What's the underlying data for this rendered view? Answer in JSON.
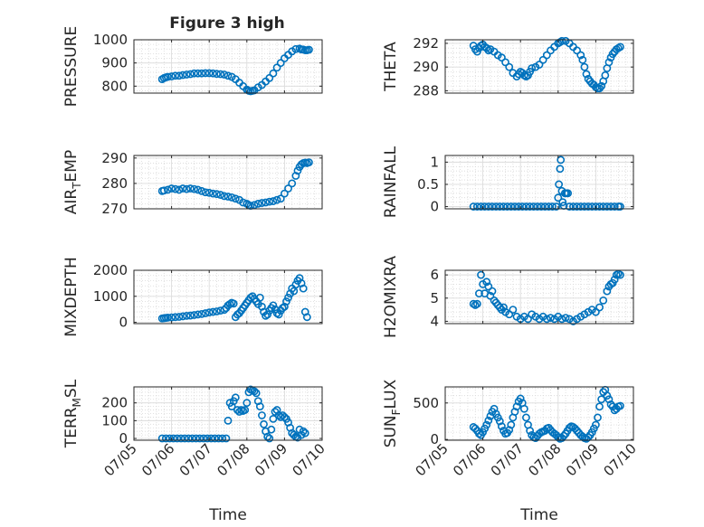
{
  "figure": {
    "title": "Figure 3 high",
    "background": "#ffffff",
    "marker_color": "#0072BD"
  },
  "chart_data": [
    {
      "type": "scatter",
      "title": "Figure 3 high",
      "xlabel": "",
      "ylabel": "PRESSURE",
      "ylim": [
        770,
        1000
      ],
      "yticks": [
        800,
        900,
        1000
      ],
      "xlim": [
        0,
        5
      ],
      "grid": true,
      "minor_grid": true,
      "xticklabels": [
        "07/05",
        "07/06",
        "07/07",
        "07/08",
        "07/09",
        "07/10"
      ],
      "x": [
        0.75,
        0.8,
        0.85,
        0.9,
        1.0,
        1.1,
        1.2,
        1.3,
        1.4,
        1.5,
        1.6,
        1.7,
        1.8,
        1.9,
        2.0,
        2.1,
        2.2,
        2.3,
        2.4,
        2.5,
        2.6,
        2.7,
        2.8,
        2.9,
        3.0,
        3.05,
        3.1,
        3.15,
        3.2,
        3.3,
        3.4,
        3.5,
        3.6,
        3.7,
        3.8,
        3.9,
        4.0,
        4.1,
        4.2,
        4.3,
        4.4,
        4.45,
        4.5,
        4.55,
        4.6,
        4.65
      ],
      "y": [
        830,
        835,
        838,
        840,
        842,
        845,
        845,
        848,
        850,
        852,
        855,
        855,
        855,
        856,
        856,
        855,
        853,
        852,
        850,
        845,
        840,
        830,
        815,
        800,
        785,
        780,
        778,
        780,
        782,
        795,
        805,
        820,
        835,
        855,
        880,
        900,
        920,
        935,
        950,
        960,
        962,
        958,
        958,
        955,
        955,
        957
      ]
    },
    {
      "type": "scatter",
      "xlabel": "",
      "ylabel": "THETA",
      "ylim": [
        287.8,
        292.3
      ],
      "yticks": [
        288,
        290,
        292
      ],
      "xlim": [
        0,
        5
      ],
      "grid": true,
      "minor_grid": true,
      "xticklabels": [
        "07/05",
        "07/06",
        "07/07",
        "07/08",
        "07/09",
        "07/10"
      ],
      "x": [
        0.75,
        0.8,
        0.85,
        0.9,
        0.95,
        1.0,
        1.05,
        1.1,
        1.15,
        1.2,
        1.3,
        1.4,
        1.5,
        1.6,
        1.7,
        1.8,
        1.9,
        1.95,
        2.0,
        2.05,
        2.1,
        2.15,
        2.2,
        2.25,
        2.3,
        2.4,
        2.5,
        2.6,
        2.7,
        2.8,
        2.9,
        3.0,
        3.05,
        3.1,
        3.2,
        3.3,
        3.4,
        3.5,
        3.6,
        3.65,
        3.7,
        3.75,
        3.8,
        3.85,
        3.9,
        3.95,
        4.0,
        4.05,
        4.1,
        4.15,
        4.2,
        4.25,
        4.3,
        4.35,
        4.4,
        4.45,
        4.5,
        4.55,
        4.6,
        4.65
      ],
      "y": [
        291.8,
        291.5,
        291.3,
        291.6,
        291.8,
        291.9,
        291.7,
        291.6,
        291.4,
        291.5,
        291.3,
        291.0,
        290.8,
        290.4,
        290.0,
        289.5,
        289.2,
        289.4,
        289.6,
        289.5,
        289.3,
        289.2,
        289.3,
        289.6,
        289.9,
        290.0,
        290.2,
        290.6,
        291.0,
        291.4,
        291.7,
        292.0,
        292.1,
        292.2,
        292.2,
        292.0,
        291.7,
        291.4,
        291.0,
        290.6,
        290.0,
        289.4,
        289.0,
        288.8,
        288.6,
        288.5,
        288.3,
        288.2,
        288.2,
        288.4,
        288.8,
        289.3,
        289.9,
        290.4,
        290.8,
        291.1,
        291.3,
        291.5,
        291.6,
        291.7
      ]
    },
    {
      "type": "scatter",
      "xlabel": "",
      "ylabel": "AIR_TEMP",
      "ylim": [
        270,
        291
      ],
      "yticks": [
        270,
        280,
        290
      ],
      "xlim": [
        0,
        5
      ],
      "grid": true,
      "minor_grid": true,
      "xticklabels": [
        "07/05",
        "07/06",
        "07/07",
        "07/08",
        "07/09",
        "07/10"
      ],
      "x": [
        0.75,
        0.8,
        0.9,
        1.0,
        1.1,
        1.2,
        1.3,
        1.4,
        1.5,
        1.6,
        1.7,
        1.8,
        1.9,
        2.0,
        2.1,
        2.2,
        2.3,
        2.4,
        2.5,
        2.6,
        2.7,
        2.8,
        2.9,
        3.0,
        3.05,
        3.1,
        3.2,
        3.3,
        3.4,
        3.5,
        3.6,
        3.7,
        3.8,
        3.9,
        4.0,
        4.1,
        4.2,
        4.3,
        4.35,
        4.4,
        4.45,
        4.5,
        4.55,
        4.6,
        4.65
      ],
      "y": [
        277,
        277.2,
        277.5,
        278,
        277.8,
        277.5,
        278,
        277.8,
        278,
        277.8,
        277.5,
        277,
        276.5,
        276.3,
        276,
        275.8,
        275.5,
        275,
        274.8,
        274.5,
        274,
        273.5,
        272.5,
        272,
        271.5,
        271.2,
        271.5,
        272,
        272.3,
        272.5,
        272.8,
        273,
        273.5,
        274,
        276,
        278,
        280,
        283,
        285,
        286.5,
        287.5,
        288,
        288.2,
        288,
        288.3
      ]
    },
    {
      "type": "scatter",
      "xlabel": "",
      "ylabel": "RAINFALL",
      "ylim": [
        -0.05,
        1.15
      ],
      "yticks": [
        0,
        0.5,
        1
      ],
      "xlim": [
        0,
        5
      ],
      "grid": true,
      "minor_grid": true,
      "xticklabels": [
        "07/05",
        "07/06",
        "07/07",
        "07/08",
        "07/09",
        "07/10"
      ],
      "x": [
        0.75,
        0.85,
        0.95,
        1.05,
        1.15,
        1.25,
        1.35,
        1.45,
        1.55,
        1.65,
        1.75,
        1.85,
        1.95,
        2.05,
        2.15,
        2.25,
        2.35,
        2.45,
        2.55,
        2.65,
        2.75,
        2.85,
        2.95,
        3.0,
        3.02,
        3.05,
        3.07,
        3.1,
        3.12,
        3.15,
        3.18,
        3.22,
        3.26,
        3.3,
        3.4,
        3.5,
        3.6,
        3.7,
        3.8,
        3.9,
        4.0,
        4.1,
        4.2,
        4.3,
        4.4,
        4.5,
        4.6,
        4.65
      ],
      "y": [
        0,
        0,
        0,
        0,
        0,
        0,
        0,
        0,
        0,
        0,
        0,
        0,
        0,
        0,
        0,
        0,
        0,
        0,
        0,
        0,
        0,
        0,
        0,
        0.2,
        0.5,
        0.85,
        1.05,
        0.35,
        0.1,
        0.02,
        0.3,
        0.3,
        0.3,
        0,
        0,
        0,
        0,
        0,
        0,
        0,
        0,
        0,
        0,
        0,
        0,
        0,
        0,
        0
      ]
    },
    {
      "type": "scatter",
      "xlabel": "",
      "ylabel": "MIXDEPTH",
      "ylim": [
        -50,
        2000
      ],
      "yticks": [
        0,
        1000,
        2000
      ],
      "xlim": [
        0,
        5
      ],
      "grid": true,
      "minor_grid": true,
      "xticklabels": [
        "07/05",
        "07/06",
        "07/07",
        "07/08",
        "07/09",
        "07/10"
      ],
      "x": [
        0.75,
        0.8,
        0.85,
        0.9,
        1.0,
        1.1,
        1.2,
        1.3,
        1.4,
        1.5,
        1.6,
        1.7,
        1.8,
        1.9,
        2.0,
        2.1,
        2.2,
        2.3,
        2.4,
        2.45,
        2.5,
        2.55,
        2.6,
        2.65,
        2.7,
        2.75,
        2.8,
        2.85,
        2.9,
        2.95,
        3.0,
        3.05,
        3.1,
        3.15,
        3.2,
        3.25,
        3.3,
        3.35,
        3.4,
        3.45,
        3.5,
        3.55,
        3.6,
        3.65,
        3.7,
        3.75,
        3.8,
        3.85,
        3.9,
        3.95,
        4.0,
        4.05,
        4.1,
        4.15,
        4.2,
        4.25,
        4.3,
        4.35,
        4.4,
        4.45,
        4.5,
        4.55,
        4.6
      ],
      "y": [
        150,
        160,
        170,
        180,
        190,
        200,
        210,
        230,
        250,
        260,
        280,
        300,
        320,
        350,
        380,
        400,
        420,
        450,
        480,
        550,
        650,
        700,
        750,
        720,
        200,
        300,
        350,
        450,
        550,
        650,
        750,
        850,
        950,
        1000,
        900,
        800,
        700,
        950,
        600,
        400,
        250,
        300,
        450,
        550,
        650,
        500,
        350,
        300,
        450,
        550,
        600,
        800,
        950,
        1100,
        1300,
        1200,
        1450,
        1600,
        1700,
        1500,
        1300,
        400,
        200
      ]
    },
    {
      "type": "scatter",
      "xlabel": "",
      "ylabel": "H2OMIXRA",
      "ylim": [
        3.9,
        6.2
      ],
      "yticks": [
        4,
        5,
        6
      ],
      "xlim": [
        0,
        5
      ],
      "grid": true,
      "minor_grid": true,
      "xticklabels": [
        "07/05",
        "07/06",
        "07/07",
        "07/08",
        "07/09",
        "07/10"
      ],
      "x": [
        0.75,
        0.8,
        0.85,
        0.9,
        0.95,
        1.0,
        1.05,
        1.1,
        1.15,
        1.2,
        1.25,
        1.3,
        1.35,
        1.4,
        1.45,
        1.5,
        1.55,
        1.6,
        1.7,
        1.8,
        1.9,
        2.0,
        2.1,
        2.2,
        2.3,
        2.4,
        2.5,
        2.6,
        2.7,
        2.8,
        2.9,
        3.0,
        3.1,
        3.2,
        3.3,
        3.4,
        3.5,
        3.6,
        3.7,
        3.8,
        3.9,
        4.0,
        4.1,
        4.2,
        4.3,
        4.35,
        4.4,
        4.45,
        4.5,
        4.55,
        4.6,
        4.65
      ],
      "y": [
        4.75,
        4.7,
        4.75,
        5.2,
        6.0,
        5.6,
        5.2,
        5.7,
        5.5,
        5.1,
        5.3,
        4.9,
        4.8,
        4.7,
        4.6,
        4.5,
        4.6,
        4.4,
        4.3,
        4.5,
        4.2,
        4.1,
        4.2,
        4.1,
        4.3,
        4.2,
        4.1,
        4.2,
        4.1,
        4.15,
        4.1,
        4.2,
        4.1,
        4.15,
        4.1,
        4.0,
        4.1,
        4.2,
        4.3,
        4.4,
        4.5,
        4.4,
        4.6,
        4.9,
        5.3,
        5.5,
        5.6,
        5.65,
        5.8,
        6.0,
        6.05,
        6.0
      ]
    },
    {
      "type": "scatter",
      "xlabel": "Time",
      "ylabel": "TERR_MSL",
      "ylim": [
        -10,
        290
      ],
      "yticks": [
        0,
        100,
        200
      ],
      "xlim": [
        0,
        5
      ],
      "grid": true,
      "minor_grid": true,
      "xticklabels": [
        "07/05",
        "07/06",
        "07/07",
        "07/08",
        "07/09",
        "07/10"
      ],
      "x": [
        0.75,
        0.85,
        0.95,
        1.05,
        1.15,
        1.25,
        1.35,
        1.45,
        1.55,
        1.65,
        1.75,
        1.85,
        1.95,
        2.05,
        2.15,
        2.25,
        2.35,
        2.45,
        2.5,
        2.55,
        2.6,
        2.65,
        2.7,
        2.75,
        2.8,
        2.85,
        2.9,
        2.95,
        3.0,
        3.05,
        3.1,
        3.15,
        3.2,
        3.25,
        3.3,
        3.35,
        3.4,
        3.45,
        3.5,
        3.55,
        3.6,
        3.65,
        3.7,
        3.75,
        3.8,
        3.85,
        3.9,
        3.95,
        4.0,
        4.05,
        4.1,
        4.15,
        4.2,
        4.25,
        4.3,
        4.35,
        4.4,
        4.45,
        4.5,
        4.55
      ],
      "y": [
        0,
        0,
        0,
        0,
        0,
        0,
        0,
        0,
        0,
        0,
        0,
        0,
        0,
        0,
        0,
        0,
        0,
        0,
        100,
        200,
        180,
        210,
        230,
        160,
        150,
        160,
        155,
        160,
        200,
        260,
        275,
        270,
        265,
        255,
        210,
        180,
        130,
        80,
        40,
        10,
        0,
        50,
        110,
        150,
        160,
        130,
        120,
        130,
        120,
        110,
        90,
        60,
        30,
        20,
        10,
        5,
        50,
        20,
        40,
        30
      ]
    },
    {
      "type": "scatter",
      "xlabel": "Time",
      "ylabel": "SUN_FLUX",
      "ylim": [
        -10,
        720
      ],
      "yticks": [
        0,
        500
      ],
      "xlim": [
        0,
        5
      ],
      "grid": true,
      "minor_grid": true,
      "xticklabels": [
        "07/05",
        "07/06",
        "07/07",
        "07/08",
        "07/09",
        "07/10"
      ],
      "x": [
        0.75,
        0.8,
        0.85,
        0.9,
        0.95,
        1.0,
        1.05,
        1.1,
        1.15,
        1.2,
        1.25,
        1.3,
        1.35,
        1.4,
        1.45,
        1.5,
        1.55,
        1.6,
        1.65,
        1.7,
        1.75,
        1.8,
        1.85,
        1.9,
        1.95,
        2.0,
        2.05,
        2.1,
        2.15,
        2.2,
        2.25,
        2.3,
        2.35,
        2.4,
        2.45,
        2.5,
        2.55,
        2.6,
        2.65,
        2.7,
        2.75,
        2.8,
        2.85,
        2.9,
        2.95,
        3.0,
        3.05,
        3.1,
        3.15,
        3.2,
        3.25,
        3.3,
        3.35,
        3.4,
        3.45,
        3.5,
        3.55,
        3.6,
        3.65,
        3.7,
        3.75,
        3.8,
        3.85,
        3.9,
        3.95,
        4.0,
        4.05,
        4.1,
        4.15,
        4.2,
        4.25,
        4.3,
        4.35,
        4.4,
        4.45,
        4.5,
        4.55,
        4.6,
        4.65
      ],
      "y": [
        170,
        150,
        120,
        80,
        60,
        100,
        150,
        200,
        260,
        320,
        380,
        420,
        350,
        300,
        250,
        180,
        120,
        80,
        90,
        130,
        200,
        300,
        380,
        450,
        520,
        560,
        500,
        420,
        300,
        200,
        120,
        60,
        30,
        20,
        50,
        80,
        100,
        110,
        120,
        150,
        160,
        130,
        100,
        80,
        60,
        30,
        10,
        20,
        50,
        80,
        120,
        160,
        180,
        170,
        150,
        120,
        90,
        60,
        40,
        20,
        10,
        30,
        60,
        100,
        150,
        200,
        300,
        450,
        550,
        650,
        680,
        600,
        550,
        480,
        450,
        400,
        420,
        450,
        460
      ]
    }
  ]
}
